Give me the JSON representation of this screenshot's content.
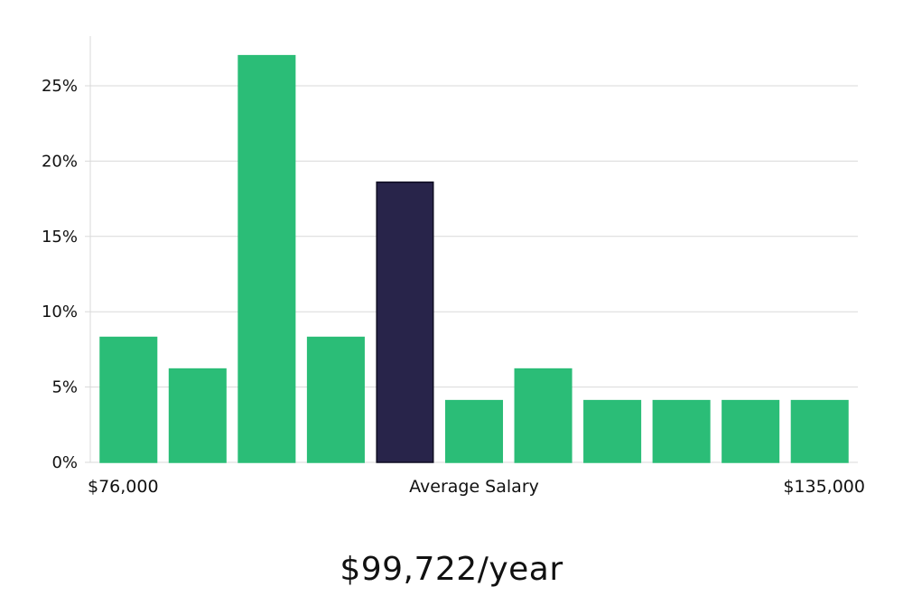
{
  "chart_data": {
    "type": "bar",
    "title": "",
    "xlabel": "Average Salary",
    "ylabel": "",
    "x_min_label": "$76,000",
    "x_max_label": "$135,000",
    "categories": [
      "bin-1",
      "bin-2",
      "bin-3",
      "bin-4",
      "bin-5",
      "bin-6",
      "bin-7",
      "bin-8",
      "bin-9",
      "bin-10",
      "bin-11"
    ],
    "values": [
      8.3,
      6.2,
      27.0,
      8.3,
      18.6,
      4.1,
      6.2,
      4.1,
      4.1,
      4.1,
      4.1
    ],
    "highlight_index": 4,
    "ylim": [
      0,
      28
    ],
    "yticks": [
      0,
      5,
      10,
      15,
      20,
      25
    ],
    "ytick_labels": [
      "0%",
      "5%",
      "10%",
      "15%",
      "20%",
      "25%"
    ],
    "grid": true,
    "colors": {
      "bar": "#2bbd77",
      "highlight": "#28244a",
      "highlight_edge": "#0f0d22",
      "grid": "#d9d9d9"
    }
  },
  "summary": {
    "salary": "$99,722/year"
  }
}
